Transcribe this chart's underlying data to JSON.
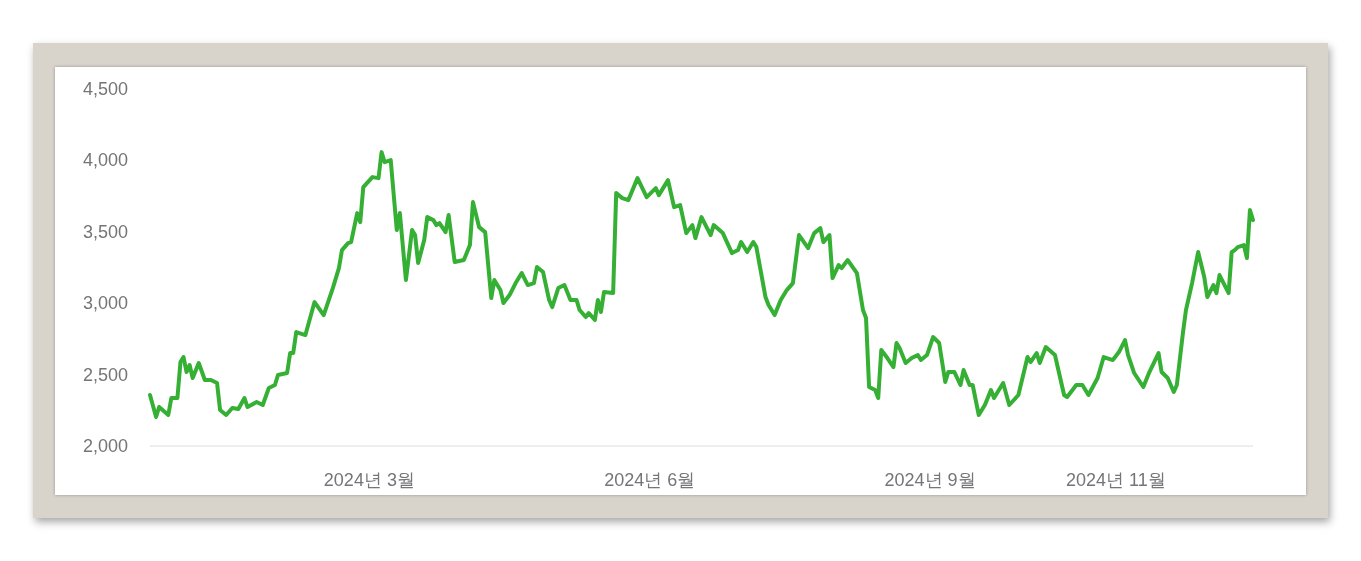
{
  "chart_data": {
    "type": "line",
    "x": [
      "2023-12-20",
      "2023-12-22",
      "2023-12-23",
      "2023-12-26",
      "2023-12-27",
      "2023-12-29",
      "2023-12-30",
      "2023-12-31",
      "2024-01-01",
      "2024-01-02",
      "2024-01-03",
      "2024-01-05",
      "2024-01-07",
      "2024-01-09",
      "2024-01-11",
      "2024-01-12",
      "2024-01-14",
      "2024-01-16",
      "2024-01-18",
      "2024-01-20",
      "2024-01-21",
      "2024-01-24",
      "2024-01-26",
      "2024-01-28",
      "2024-01-30",
      "2024-01-31",
      "2024-02-03",
      "2024-02-04",
      "2024-02-05",
      "2024-02-06",
      "2024-02-09",
      "2024-02-12",
      "2024-02-15",
      "2024-02-18",
      "2024-02-20",
      "2024-02-21",
      "2024-02-23",
      "2024-02-24",
      "2024-02-26",
      "2024-02-27",
      "2024-02-28",
      "2024-03-02",
      "2024-03-04",
      "2024-03-05",
      "2024-03-06",
      "2024-03-08",
      "2024-03-10",
      "2024-03-11",
      "2024-03-13",
      "2024-03-15",
      "2024-03-16",
      "2024-03-17",
      "2024-03-19",
      "2024-03-20",
      "2024-03-22",
      "2024-03-23",
      "2024-03-24",
      "2024-03-26",
      "2024-03-27",
      "2024-03-29",
      "2024-04-01",
      "2024-04-03",
      "2024-04-04",
      "2024-04-06",
      "2024-04-08",
      "2024-04-10",
      "2024-04-11",
      "2024-04-13",
      "2024-04-14",
      "2024-04-16",
      "2024-04-18",
      "2024-04-20",
      "2024-04-22",
      "2024-04-24",
      "2024-04-25",
      "2024-04-27",
      "2024-04-29",
      "2024-04-30",
      "2024-05-02",
      "2024-05-04",
      "2024-05-06",
      "2024-05-08",
      "2024-05-09",
      "2024-05-11",
      "2024-05-12",
      "2024-05-14",
      "2024-05-15",
      "2024-05-16",
      "2024-05-17",
      "2024-05-20",
      "2024-05-21",
      "2024-05-23",
      "2024-05-25",
      "2024-05-28",
      "2024-05-31",
      "2024-06-03",
      "2024-06-04",
      "2024-06-07",
      "2024-06-09",
      "2024-06-11",
      "2024-06-13",
      "2024-06-15",
      "2024-06-16",
      "2024-06-18",
      "2024-06-21",
      "2024-06-22",
      "2024-06-25",
      "2024-06-28",
      "2024-06-30",
      "2024-07-01",
      "2024-07-03",
      "2024-07-05",
      "2024-07-06",
      "2024-07-09",
      "2024-07-10",
      "2024-07-12",
      "2024-07-14",
      "2024-07-16",
      "2024-07-18",
      "2024-07-20",
      "2024-07-23",
      "2024-07-25",
      "2024-07-27",
      "2024-07-28",
      "2024-07-30",
      "2024-07-31",
      "2024-08-02",
      "2024-08-03",
      "2024-08-05",
      "2024-08-08",
      "2024-08-10",
      "2024-08-11",
      "2024-08-12",
      "2024-08-14",
      "2024-08-15",
      "2024-08-16",
      "2024-08-18",
      "2024-08-20",
      "2024-08-21",
      "2024-08-22",
      "2024-08-24",
      "2024-08-26",
      "2024-08-28",
      "2024-08-29",
      "2024-08-31",
      "2024-09-02",
      "2024-09-04",
      "2024-09-06",
      "2024-09-07",
      "2024-09-09",
      "2024-09-11",
      "2024-09-12",
      "2024-09-14",
      "2024-09-15",
      "2024-09-17",
      "2024-09-19",
      "2024-09-21",
      "2024-09-22",
      "2024-09-25",
      "2024-09-27",
      "2024-09-30",
      "2024-10-03",
      "2024-10-04",
      "2024-10-06",
      "2024-10-07",
      "2024-10-09",
      "2024-10-12",
      "2024-10-15",
      "2024-10-16",
      "2024-10-19",
      "2024-10-21",
      "2024-10-23",
      "2024-10-26",
      "2024-10-28",
      "2024-10-31",
      "2024-11-02",
      "2024-11-04",
      "2024-11-05",
      "2024-11-07",
      "2024-11-10",
      "2024-11-12",
      "2024-11-15",
      "2024-11-16",
      "2024-11-18",
      "2024-11-20",
      "2024-11-21",
      "2024-11-23",
      "2024-11-24",
      "2024-11-26",
      "2024-11-28",
      "2024-11-30",
      "2024-12-01",
      "2024-12-03",
      "2024-12-04",
      "2024-12-05",
      "2024-12-08",
      "2024-12-09",
      "2024-12-10",
      "2024-12-11",
      "2024-12-13",
      "2024-12-14",
      "2024-12-15",
      "2024-12-16"
    ],
    "series": [
      {
        "color": "#35b035",
        "values": [
          2357,
          2203,
          2273,
          2217,
          2336,
          2336,
          2588,
          2623,
          2518,
          2567,
          2476,
          2581,
          2462,
          2462,
          2441,
          2252,
          2217,
          2266,
          2259,
          2336,
          2273,
          2308,
          2287,
          2406,
          2427,
          2497,
          2511,
          2651,
          2651,
          2798,
          2777,
          3008,
          2917,
          3106,
          3246,
          3372,
          3421,
          3428,
          3631,
          3568,
          3813,
          3883,
          3876,
          4058,
          3988,
          4002,
          3512,
          3631,
          3162,
          3512,
          3477,
          3281,
          3442,
          3603,
          3582,
          3547,
          3561,
          3498,
          3617,
          3288,
          3302,
          3407,
          3708,
          3533,
          3498,
          3036,
          3162,
          3092,
          3001,
          3057,
          3141,
          3211,
          3127,
          3141,
          3253,
          3218,
          3022,
          2973,
          3106,
          3127,
          3022,
          3022,
          2952,
          2903,
          2931,
          2882,
          3022,
          2938,
          3078,
          3071,
          3771,
          3736,
          3722,
          3876,
          3743,
          3806,
          3757,
          3862,
          3673,
          3687,
          3491,
          3547,
          3456,
          3603,
          3477,
          3547,
          3491,
          3351,
          3372,
          3428,
          3358,
          3428,
          3393,
          3043,
          2987,
          2917,
          3022,
          3092,
          3141,
          3477,
          3386,
          3491,
          3526,
          3428,
          3477,
          3176,
          3267,
          3246,
          3302,
          3211,
          2952,
          2896,
          2413,
          2392,
          2336,
          2672,
          2616,
          2553,
          2721,
          2686,
          2581,
          2616,
          2637,
          2602,
          2637,
          2763,
          2721,
          2448,
          2518,
          2518,
          2427,
          2532,
          2427,
          2427,
          2217,
          2287,
          2392,
          2336,
          2441,
          2287,
          2357,
          2623,
          2588,
          2651,
          2581,
          2693,
          2637,
          2357,
          2343,
          2427,
          2427,
          2357,
          2476,
          2623,
          2602,
          2658,
          2742,
          2637,
          2511,
          2413,
          2518,
          2651,
          2518,
          2476,
          2378,
          2427,
          2791,
          2952,
          3141,
          3358,
          3183,
          3043,
          3127,
          3071,
          3197,
          3071,
          3358,
          3372,
          3393,
          3407,
          3316,
          3652,
          3582
        ]
      }
    ],
    "xlim": [
      "2023-12-20",
      "2024-12-16"
    ],
    "xticks": [
      {
        "value": "2024-03-01",
        "label": "2024년 3월"
      },
      {
        "value": "2024-06-01",
        "label": "2024년 6월"
      },
      {
        "value": "2024-09-01",
        "label": "2024년 9월"
      },
      {
        "value": "2024-11-01",
        "label": "2024년 11월"
      }
    ],
    "ylim": [
      2000,
      4500
    ],
    "yticks": [
      {
        "value": 2000,
        "label": "2,000"
      },
      {
        "value": 2500,
        "label": "2,500"
      },
      {
        "value": 3000,
        "label": "3,000"
      },
      {
        "value": 3500,
        "label": "3,500"
      },
      {
        "value": 4000,
        "label": "4,000"
      },
      {
        "value": 4500,
        "label": "4,500"
      }
    ]
  }
}
